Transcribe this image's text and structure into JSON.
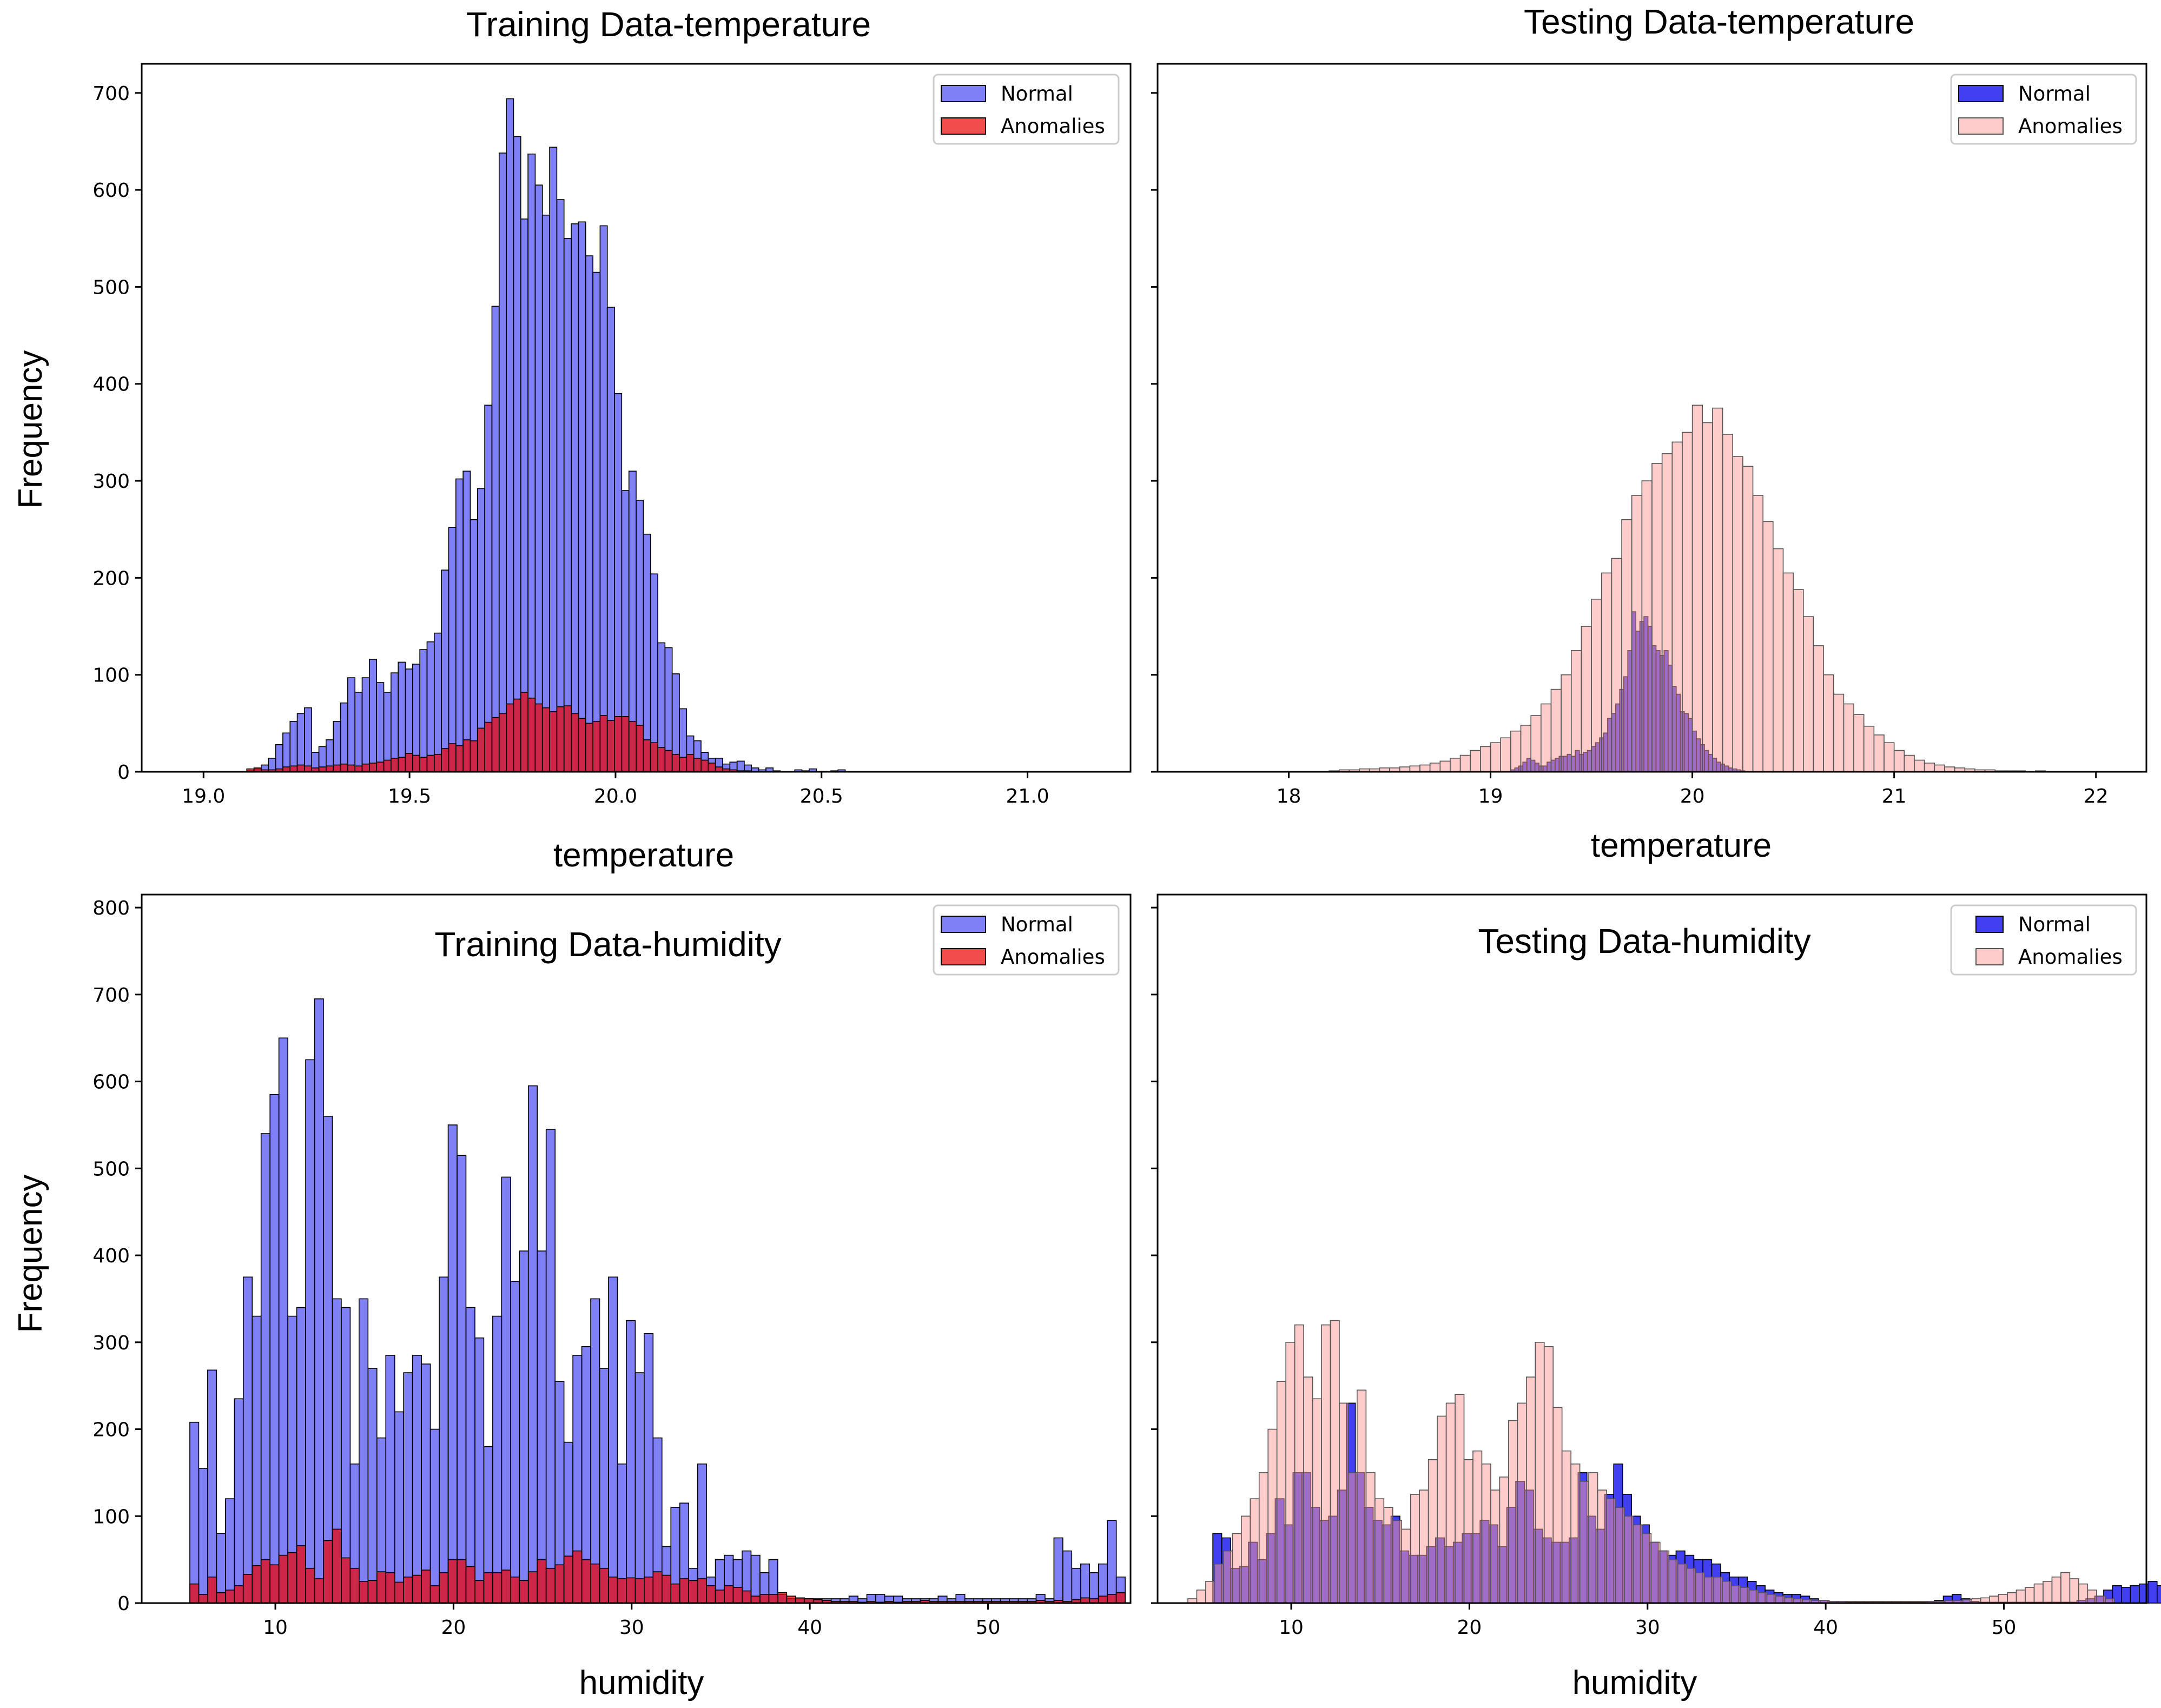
{
  "figure": {
    "background": "#ffffff"
  },
  "chart_data": [
    {
      "type": "bar",
      "title": "Training Data-temperature",
      "xlabel": "temperature",
      "ylabel": "Frequency",
      "xlim": [
        18.85,
        21.25
      ],
      "ylim": [
        0,
        730
      ],
      "xticks": [
        19.0,
        19.5,
        20.0,
        20.5,
        21.0
      ],
      "xtick_labels": [
        "19.0",
        "19.5",
        "20.0",
        "20.5",
        "21.0"
      ],
      "yticks": [
        0,
        100,
        200,
        300,
        400,
        500,
        600,
        700
      ],
      "ytick_labels": [
        "0",
        "100",
        "200",
        "300",
        "400",
        "500",
        "600",
        "700"
      ],
      "legend": "top-right",
      "bin_start": 19.0,
      "bin_width": 0.0175,
      "series": [
        {
          "name": "Normal",
          "color": "#0000ee",
          "alpha": 0.5,
          "edge": "#000000",
          "values": [
            0,
            0,
            0,
            0,
            0,
            0,
            1,
            3,
            7,
            14,
            28,
            40,
            52,
            60,
            66,
            20,
            26,
            33,
            52,
            71,
            97,
            82,
            97,
            116,
            92,
            82,
            102,
            113,
            106,
            111,
            126,
            134,
            143,
            208,
            252,
            302,
            310,
            260,
            292,
            378,
            480,
            638,
            694,
            655,
            570,
            637,
            605,
            574,
            644,
            590,
            550,
            565,
            567,
            532,
            515,
            563,
            479,
            390,
            290,
            310,
            280,
            245,
            204,
            133,
            128,
            101,
            65,
            37,
            32,
            20,
            14,
            14,
            8,
            10,
            11,
            7,
            4,
            2,
            4,
            1,
            0,
            0,
            2,
            1,
            3,
            0,
            0,
            1,
            2
          ]
        },
        {
          "name": "Anomalies",
          "color": "#ee0000",
          "alpha": 0.7,
          "edge": "#000000",
          "values": [
            0,
            0,
            0,
            0,
            0,
            0,
            3,
            4,
            2,
            2,
            3,
            5,
            6,
            7,
            6,
            4,
            5,
            6,
            7,
            8,
            7,
            6,
            8,
            9,
            10,
            12,
            14,
            15,
            19,
            17,
            15,
            17,
            18,
            24,
            29,
            27,
            33,
            32,
            45,
            51,
            56,
            60,
            70,
            75,
            82,
            76,
            70,
            66,
            62,
            67,
            68,
            60,
            55,
            50,
            52,
            58,
            53,
            57,
            57,
            52,
            48,
            33,
            30,
            25,
            22,
            18,
            15,
            18,
            14,
            12,
            9,
            5,
            3,
            2,
            1,
            1,
            0,
            0,
            0,
            0,
            0,
            0,
            0,
            0,
            0,
            0,
            0,
            0,
            0
          ]
        }
      ]
    },
    {
      "type": "bar",
      "title": "Testing Data-temperature",
      "xlabel": "temperature",
      "ylabel": "",
      "xlim": [
        17.35,
        22.25
      ],
      "ylim": [
        0,
        730
      ],
      "xticks": [
        18,
        19,
        20,
        21,
        22
      ],
      "xtick_labels": [
        "18",
        "19",
        "20",
        "21",
        "22"
      ],
      "yticks": [
        0,
        100,
        200,
        300,
        400,
        500,
        600,
        700
      ],
      "ytick_labels": [
        "",
        "",
        "",
        "",
        "",
        "",
        "",
        ""
      ],
      "legend": "top-right",
      "series": [
        {
          "name": "Normal",
          "color": "#0000ee",
          "alpha": 0.75,
          "edge": "#000000",
          "bin_start": 19.1,
          "bin_width": 0.02,
          "values": [
            2,
            4,
            6,
            10,
            14,
            12,
            9,
            6,
            6,
            10,
            12,
            14,
            16,
            16,
            18,
            16,
            22,
            18,
            20,
            22,
            26,
            30,
            35,
            40,
            55,
            60,
            70,
            85,
            98,
            125,
            165,
            145,
            155,
            160,
            150,
            130,
            125,
            120,
            125,
            110,
            88,
            80,
            62,
            60,
            55,
            42,
            34,
            28,
            22,
            18,
            14,
            10,
            8,
            6,
            4,
            3,
            2,
            1
          ]
        },
        {
          "name": "Anomalies",
          "color": "#ff9999",
          "alpha": 0.5,
          "edge": "#555555",
          "bin_start": 18.2,
          "bin_width": 0.05,
          "values": [
            1,
            2,
            2,
            3,
            3,
            4,
            4,
            5,
            6,
            7,
            9,
            11,
            14,
            17,
            22,
            26,
            30,
            35,
            42,
            48,
            58,
            70,
            85,
            100,
            125,
            150,
            178,
            205,
            220,
            260,
            285,
            300,
            318,
            328,
            340,
            350,
            378,
            360,
            375,
            348,
            325,
            315,
            285,
            258,
            230,
            205,
            188,
            160,
            130,
            100,
            80,
            70,
            59,
            47,
            38,
            30,
            22,
            17,
            12,
            9,
            7,
            5,
            4,
            3,
            2,
            2,
            1,
            1,
            1,
            0,
            1
          ]
        }
      ]
    },
    {
      "type": "bar",
      "title": "Training Data-humidity",
      "xlabel": "humidity",
      "ylabel": "Frequency",
      "xlim": [
        2.5,
        58.0
      ],
      "ylim": [
        0,
        815
      ],
      "xticks": [
        10,
        20,
        30,
        40,
        50
      ],
      "xtick_labels": [
        "10",
        "20",
        "30",
        "40",
        "50"
      ],
      "yticks": [
        0,
        100,
        200,
        300,
        400,
        500,
        600,
        700,
        800
      ],
      "ytick_labels": [
        "0",
        "100",
        "200",
        "300",
        "400",
        "500",
        "600",
        "700",
        "800"
      ],
      "legend": "top-right",
      "bin_start": 5.2,
      "bin_width": 0.5,
      "series": [
        {
          "name": "Normal",
          "color": "#0000ee",
          "alpha": 0.5,
          "edge": "#000000",
          "values": [
            208,
            155,
            268,
            80,
            120,
            235,
            375,
            330,
            540,
            585,
            650,
            330,
            340,
            625,
            695,
            560,
            350,
            340,
            160,
            350,
            270,
            190,
            285,
            220,
            265,
            285,
            275,
            200,
            375,
            550,
            515,
            340,
            305,
            180,
            330,
            490,
            370,
            405,
            595,
            405,
            545,
            255,
            185,
            285,
            295,
            350,
            270,
            375,
            160,
            325,
            265,
            310,
            190,
            65,
            110,
            115,
            40,
            160,
            30,
            50,
            55,
            50,
            60,
            55,
            35,
            50,
            10,
            5,
            5,
            5,
            5,
            5,
            5,
            5,
            8,
            5,
            10,
            10,
            8,
            8,
            5,
            5,
            5,
            5,
            8,
            5,
            10,
            5,
            5,
            5,
            5,
            5,
            5,
            5,
            5,
            10,
            5,
            75,
            60,
            40,
            45,
            35,
            45,
            95,
            30
          ]
        },
        {
          "name": "Anomalies",
          "color": "#ee0000",
          "alpha": 0.7,
          "edge": "#000000",
          "values": [
            22,
            10,
            30,
            12,
            15,
            20,
            33,
            43,
            50,
            44,
            55,
            58,
            66,
            40,
            28,
            72,
            85,
            52,
            40,
            25,
            26,
            36,
            35,
            24,
            30,
            32,
            38,
            20,
            35,
            50,
            50,
            42,
            26,
            35,
            35,
            38,
            30,
            26,
            36,
            50,
            40,
            44,
            54,
            60,
            50,
            45,
            40,
            30,
            28,
            29,
            28,
            30,
            36,
            32,
            22,
            28,
            26,
            28,
            20,
            15,
            20,
            18,
            14,
            8,
            10,
            10,
            12,
            8,
            6,
            5,
            4,
            3,
            2,
            2,
            2,
            1,
            2,
            1,
            2,
            1,
            2,
            2,
            3,
            2,
            2,
            2,
            2,
            2,
            2,
            2,
            2,
            2,
            2,
            2,
            2,
            3,
            2,
            3,
            2,
            4,
            6,
            5,
            8,
            10,
            12
          ]
        }
      ]
    },
    {
      "type": "bar",
      "title": "Testing Data-humidity",
      "xlabel": "humidity",
      "ylabel": "",
      "xlim": [
        2.5,
        58.0
      ],
      "ylim": [
        0,
        815
      ],
      "xticks": [
        10,
        20,
        30,
        40,
        50
      ],
      "xtick_labels": [
        "10",
        "20",
        "30",
        "40",
        "50"
      ],
      "yticks": [
        0,
        100,
        200,
        300,
        400,
        500,
        600,
        700,
        800
      ],
      "ytick_labels": [
        "",
        "",
        "",
        "",
        "",
        "",
        "",
        "",
        ""
      ],
      "legend": "top-right",
      "series": [
        {
          "name": "Normal",
          "color": "#0000ee",
          "alpha": 0.75,
          "edge": "#000000",
          "bin_start": 5.6,
          "bin_width": 0.5,
          "values": [
            80,
            75,
            40,
            42,
            70,
            50,
            80,
            120,
            90,
            150,
            150,
            110,
            95,
            100,
            130,
            230,
            150,
            110,
            95,
            90,
            100,
            60,
            55,
            55,
            65,
            75,
            65,
            70,
            80,
            80,
            95,
            90,
            65,
            110,
            140,
            130,
            85,
            75,
            70,
            70,
            75,
            150,
            100,
            85,
            125,
            160,
            125,
            100,
            90,
            70,
            60,
            55,
            60,
            55,
            50,
            50,
            45,
            35,
            30,
            30,
            25,
            20,
            15,
            12,
            10,
            10,
            8,
            5,
            3,
            2,
            2,
            1,
            1,
            1,
            1,
            1,
            1,
            1,
            1,
            1,
            2,
            3,
            8,
            10,
            5,
            2,
            1,
            1,
            1,
            1,
            1,
            1,
            1,
            1,
            1,
            1,
            1,
            3,
            5,
            8,
            15,
            20,
            18,
            20,
            22,
            25,
            20,
            15
          ]
        },
        {
          "name": "Anomalies",
          "color": "#ff9999",
          "alpha": 0.5,
          "edge": "#555555",
          "bin_start": 4.2,
          "bin_width": 0.5,
          "values": [
            5,
            15,
            25,
            45,
            60,
            80,
            100,
            120,
            150,
            200,
            255,
            300,
            320,
            260,
            235,
            320,
            325,
            230,
            150,
            245,
            150,
            120,
            110,
            95,
            85,
            125,
            130,
            165,
            215,
            230,
            240,
            165,
            175,
            160,
            130,
            145,
            210,
            230,
            260,
            300,
            295,
            225,
            175,
            160,
            140,
            150,
            130,
            120,
            110,
            100,
            90,
            80,
            70,
            60,
            50,
            45,
            40,
            35,
            30,
            30,
            25,
            20,
            18,
            15,
            12,
            10,
            8,
            6,
            5,
            4,
            3,
            3,
            2,
            2,
            2,
            2,
            2,
            2,
            2,
            2,
            2,
            2,
            2,
            2,
            2,
            3,
            3,
            4,
            5,
            6,
            8,
            10,
            12,
            15,
            18,
            22,
            25,
            30,
            35,
            28,
            22,
            15,
            8,
            5
          ]
        }
      ]
    }
  ]
}
